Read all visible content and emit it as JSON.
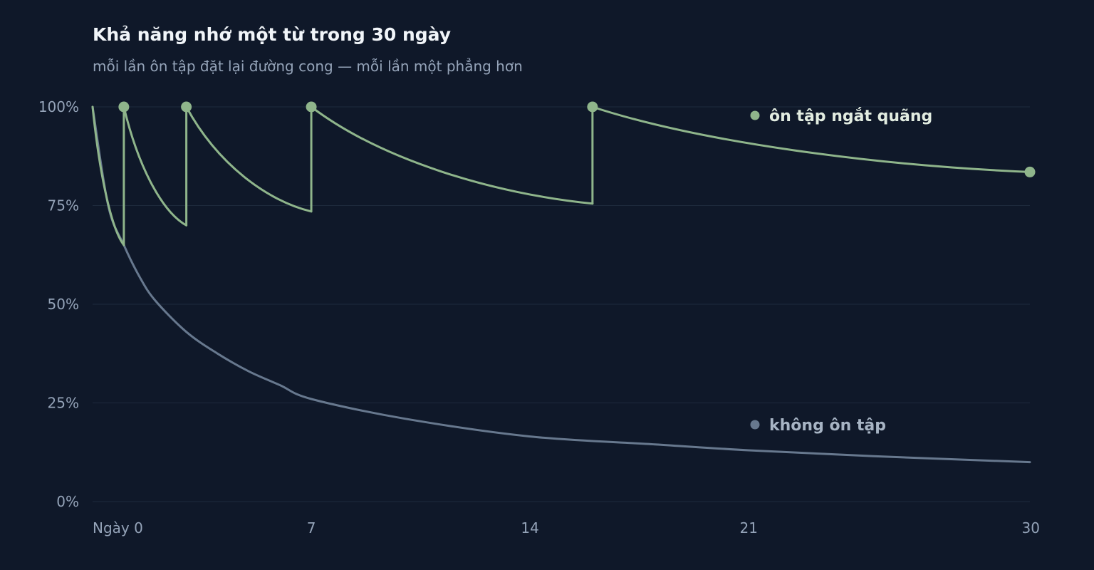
{
  "colors": {
    "background": "#0f1829",
    "grid": "#1e2a3d",
    "spaced": "#8fb58b",
    "spaced_text": "#e2ece1",
    "no_review": "#67788e",
    "no_review_text": "#a7b4c4",
    "tick_text": "#94a3b8"
  },
  "chart_data": {
    "type": "line",
    "title": "Khả năng nhớ một từ trong 30 ngày",
    "subtitle": "mỗi lần ôn tập đặt lại đường cong — mỗi lần một phẳng hơn",
    "xlabel": "",
    "ylabel": "",
    "xlim": [
      0,
      30
    ],
    "ylim": [
      0,
      100
    ],
    "grid": true,
    "x_ticks": [
      {
        "value": 0,
        "label": "Ngày 0"
      },
      {
        "value": 7,
        "label": "7"
      },
      {
        "value": 14,
        "label": "14"
      },
      {
        "value": 21,
        "label": "21"
      },
      {
        "value": 30,
        "label": "30"
      }
    ],
    "y_ticks": [
      {
        "value": 100,
        "label": "100%"
      },
      {
        "value": 75,
        "label": "75%"
      },
      {
        "value": 50,
        "label": "50%"
      },
      {
        "value": 25,
        "label": "25%"
      },
      {
        "value": 0,
        "label": "0%"
      }
    ],
    "series": [
      {
        "name": "không ôn tập",
        "kind": "forgetting-curve",
        "points": [
          [
            0,
            100
          ],
          [
            0.5,
            75
          ],
          [
            1,
            65
          ],
          [
            1.5,
            57
          ],
          [
            2,
            51
          ],
          [
            3,
            43
          ],
          [
            4,
            37.5
          ],
          [
            5,
            33
          ],
          [
            6,
            29.5
          ],
          [
            7,
            26
          ],
          [
            10,
            21
          ],
          [
            14,
            16.5
          ],
          [
            18,
            14.5
          ],
          [
            21,
            13
          ],
          [
            25,
            11.5
          ],
          [
            30,
            10
          ]
        ]
      },
      {
        "name": "ôn tập ngắt quãng",
        "kind": "spaced-repetition",
        "points": [
          [
            0,
            100
          ],
          [
            1,
            65
          ],
          [
            1,
            100
          ],
          [
            3,
            70
          ],
          [
            3,
            100
          ],
          [
            7,
            73.5
          ],
          [
            7,
            100
          ],
          [
            16,
            75.5
          ],
          [
            16,
            100
          ],
          [
            30,
            83.5
          ]
        ],
        "review_days": [
          1,
          3,
          7,
          16
        ],
        "end_point": [
          30,
          83.5
        ]
      }
    ]
  }
}
